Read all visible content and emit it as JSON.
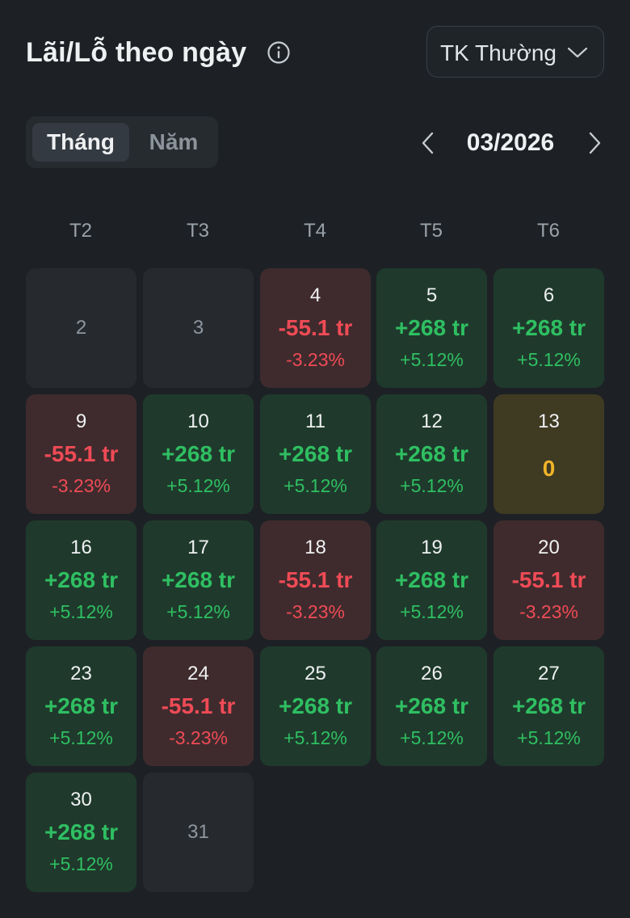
{
  "header": {
    "title": "Lãi/Lỗ theo ngày",
    "account": "TK Thường"
  },
  "toggle": {
    "month": "Tháng",
    "year": "Năm"
  },
  "nav": {
    "month_label": "03/2026"
  },
  "weekdays": [
    "T2",
    "T3",
    "T4",
    "T5",
    "T6"
  ],
  "colors": {
    "gain": "#2fbf62",
    "loss": "#ef4b56",
    "flat": "#f0b429"
  },
  "days": [
    {
      "day": "2",
      "status": "empty"
    },
    {
      "day": "3",
      "status": "empty"
    },
    {
      "day": "4",
      "status": "loss",
      "amount": "-55.1 tr",
      "pct": "-3.23%"
    },
    {
      "day": "5",
      "status": "gain",
      "amount": "+268 tr",
      "pct": "+5.12%"
    },
    {
      "day": "6",
      "status": "gain",
      "amount": "+268 tr",
      "pct": "+5.12%"
    },
    {
      "day": "9",
      "status": "loss",
      "amount": "-55.1 tr",
      "pct": "-3.23%"
    },
    {
      "day": "10",
      "status": "gain",
      "amount": "+268 tr",
      "pct": "+5.12%"
    },
    {
      "day": "11",
      "status": "gain",
      "amount": "+268 tr",
      "pct": "+5.12%"
    },
    {
      "day": "12",
      "status": "gain",
      "amount": "+268 tr",
      "pct": "+5.12%"
    },
    {
      "day": "13",
      "status": "flat",
      "amount": "0"
    },
    {
      "day": "16",
      "status": "gain",
      "amount": "+268 tr",
      "pct": "+5.12%"
    },
    {
      "day": "17",
      "status": "gain",
      "amount": "+268 tr",
      "pct": "+5.12%"
    },
    {
      "day": "18",
      "status": "loss",
      "amount": "-55.1 tr",
      "pct": "-3.23%"
    },
    {
      "day": "19",
      "status": "gain",
      "amount": "+268 tr",
      "pct": "+5.12%"
    },
    {
      "day": "20",
      "status": "loss",
      "amount": "-55.1 tr",
      "pct": "-3.23%"
    },
    {
      "day": "23",
      "status": "gain",
      "amount": "+268 tr",
      "pct": "+5.12%"
    },
    {
      "day": "24",
      "status": "loss",
      "amount": "-55.1 tr",
      "pct": "-3.23%"
    },
    {
      "day": "25",
      "status": "gain",
      "amount": "+268 tr",
      "pct": "+5.12%"
    },
    {
      "day": "26",
      "status": "gain",
      "amount": "+268 tr",
      "pct": "+5.12%"
    },
    {
      "day": "27",
      "status": "gain",
      "amount": "+268 tr",
      "pct": "+5.12%"
    },
    {
      "day": "30",
      "status": "gain",
      "amount": "+268 tr",
      "pct": "+5.12%"
    },
    {
      "day": "31",
      "status": "empty"
    }
  ]
}
